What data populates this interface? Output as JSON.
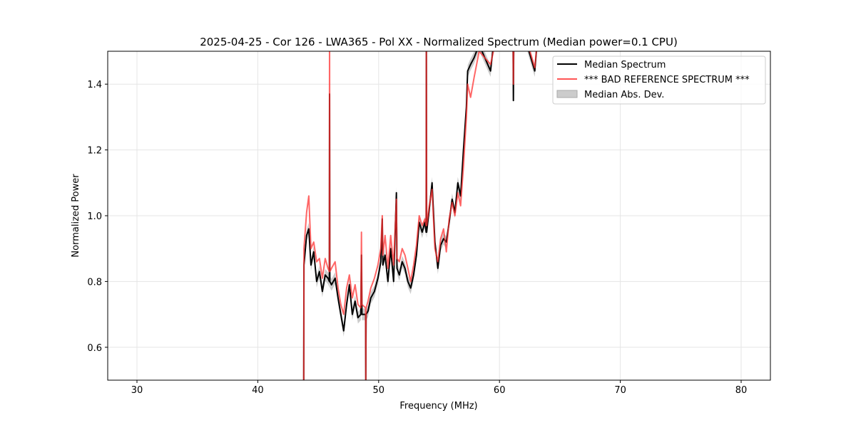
{
  "chart_data": {
    "type": "line",
    "title": "2025-04-25 - Cor 126 - LWA365 - Pol XX - Normalized Spectrum (Median power=0.1 CPU)",
    "xlabel": "Frequency (MHz)",
    "ylabel": "Normalized Power",
    "xlim": [
      27.58,
      82.42
    ],
    "ylim": [
      0.5,
      1.5
    ],
    "xticks": [
      30,
      40,
      50,
      60,
      70,
      80
    ],
    "yticks": [
      0.6,
      0.8,
      1.0,
      1.2,
      1.4
    ],
    "ytick_labels": [
      "0.6",
      "0.8",
      "1.0",
      "1.2",
      "1.4"
    ],
    "grid": true,
    "legend_position": "top-right",
    "legend": [
      "Median Spectrum",
      "*** BAD REFERENCE SPECTRUM ***",
      "Median Abs. Dev."
    ],
    "colors": {
      "median": "#000000",
      "reference": "#ff5555",
      "mad": "#aaaaaa",
      "overlap": "#990000"
    },
    "x": [
      43.8,
      43.82,
      44.04,
      44.22,
      44.4,
      44.63,
      44.87,
      45.1,
      45.34,
      45.58,
      45.81,
      45.92,
      45.94,
      45.96,
      46.1,
      46.4,
      46.64,
      46.87,
      47.11,
      47.35,
      47.58,
      47.82,
      48.05,
      48.29,
      48.53,
      48.58,
      48.62,
      48.92,
      48.94,
      48.96,
      49.12,
      49.35,
      49.65,
      49.94,
      50.18,
      50.3,
      50.35,
      50.53,
      50.77,
      51.0,
      51.24,
      51.47,
      51.52,
      51.71,
      51.95,
      52.18,
      52.42,
      52.65,
      52.89,
      53.13,
      53.36,
      53.6,
      53.83,
      53.93,
      53.95,
      53.97,
      54.19,
      54.42,
      54.66,
      54.9,
      55.13,
      55.37,
      55.6,
      55.84,
      56.08,
      56.31,
      56.55,
      56.78,
      57.02,
      57.26,
      57.37,
      57.61,
      57.9,
      58.32,
      59.26,
      59.5,
      60.5,
      61.13,
      61.15,
      61.18,
      62.04,
      62.92,
      63.1
    ],
    "series": [
      {
        "name": "Median Spectrum",
        "values": [
          0.5,
          0.85,
          0.94,
          0.96,
          0.85,
          0.89,
          0.8,
          0.83,
          0.77,
          0.82,
          0.81,
          0.8,
          1.37,
          0.8,
          0.79,
          0.81,
          0.75,
          0.7,
          0.65,
          0.73,
          0.79,
          0.7,
          0.74,
          0.69,
          0.7,
          0.88,
          0.7,
          0.7,
          0.5,
          0.7,
          0.71,
          0.75,
          0.77,
          0.81,
          0.86,
          0.99,
          0.85,
          0.88,
          0.8,
          0.9,
          0.8,
          1.07,
          0.84,
          0.82,
          0.86,
          0.84,
          0.8,
          0.78,
          0.82,
          0.88,
          0.98,
          0.95,
          0.98,
          0.95,
          1.5,
          0.95,
          1.02,
          1.1,
          0.92,
          0.84,
          0.91,
          0.93,
          0.92,
          0.98,
          1.05,
          1.01,
          1.1,
          1.06,
          1.2,
          1.33,
          1.44,
          1.46,
          1.48,
          1.52,
          1.44,
          1.52,
          1.55,
          1.52,
          1.35,
          1.52,
          1.55,
          1.44,
          1.52
        ]
      },
      {
        "name": "*** BAD REFERENCE SPECTRUM ***",
        "values": [
          0.5,
          0.9,
          1.01,
          1.06,
          0.9,
          0.92,
          0.86,
          0.87,
          0.81,
          0.87,
          0.84,
          0.83,
          1.6,
          0.83,
          0.84,
          0.86,
          0.78,
          0.73,
          0.7,
          0.78,
          0.82,
          0.75,
          0.79,
          0.73,
          0.72,
          0.95,
          0.73,
          0.72,
          0.5,
          0.72,
          0.74,
          0.78,
          0.81,
          0.85,
          0.9,
          1.0,
          0.88,
          0.94,
          0.84,
          0.94,
          0.85,
          1.05,
          0.87,
          0.86,
          0.9,
          0.88,
          0.84,
          0.8,
          0.85,
          0.91,
          1.0,
          0.97,
          0.99,
          0.97,
          1.6,
          0.97,
          1.03,
          1.08,
          0.9,
          0.86,
          0.93,
          0.96,
          0.89,
          0.99,
          1.04,
          1.0,
          1.07,
          1.03,
          1.15,
          1.3,
          1.4,
          1.36,
          1.42,
          1.5,
          1.46,
          1.5,
          1.56,
          1.52,
          1.4,
          1.52,
          1.56,
          1.45,
          1.52
        ]
      },
      {
        "name": "Median Abs. Dev.",
        "spread": 0.018
      }
    ]
  }
}
